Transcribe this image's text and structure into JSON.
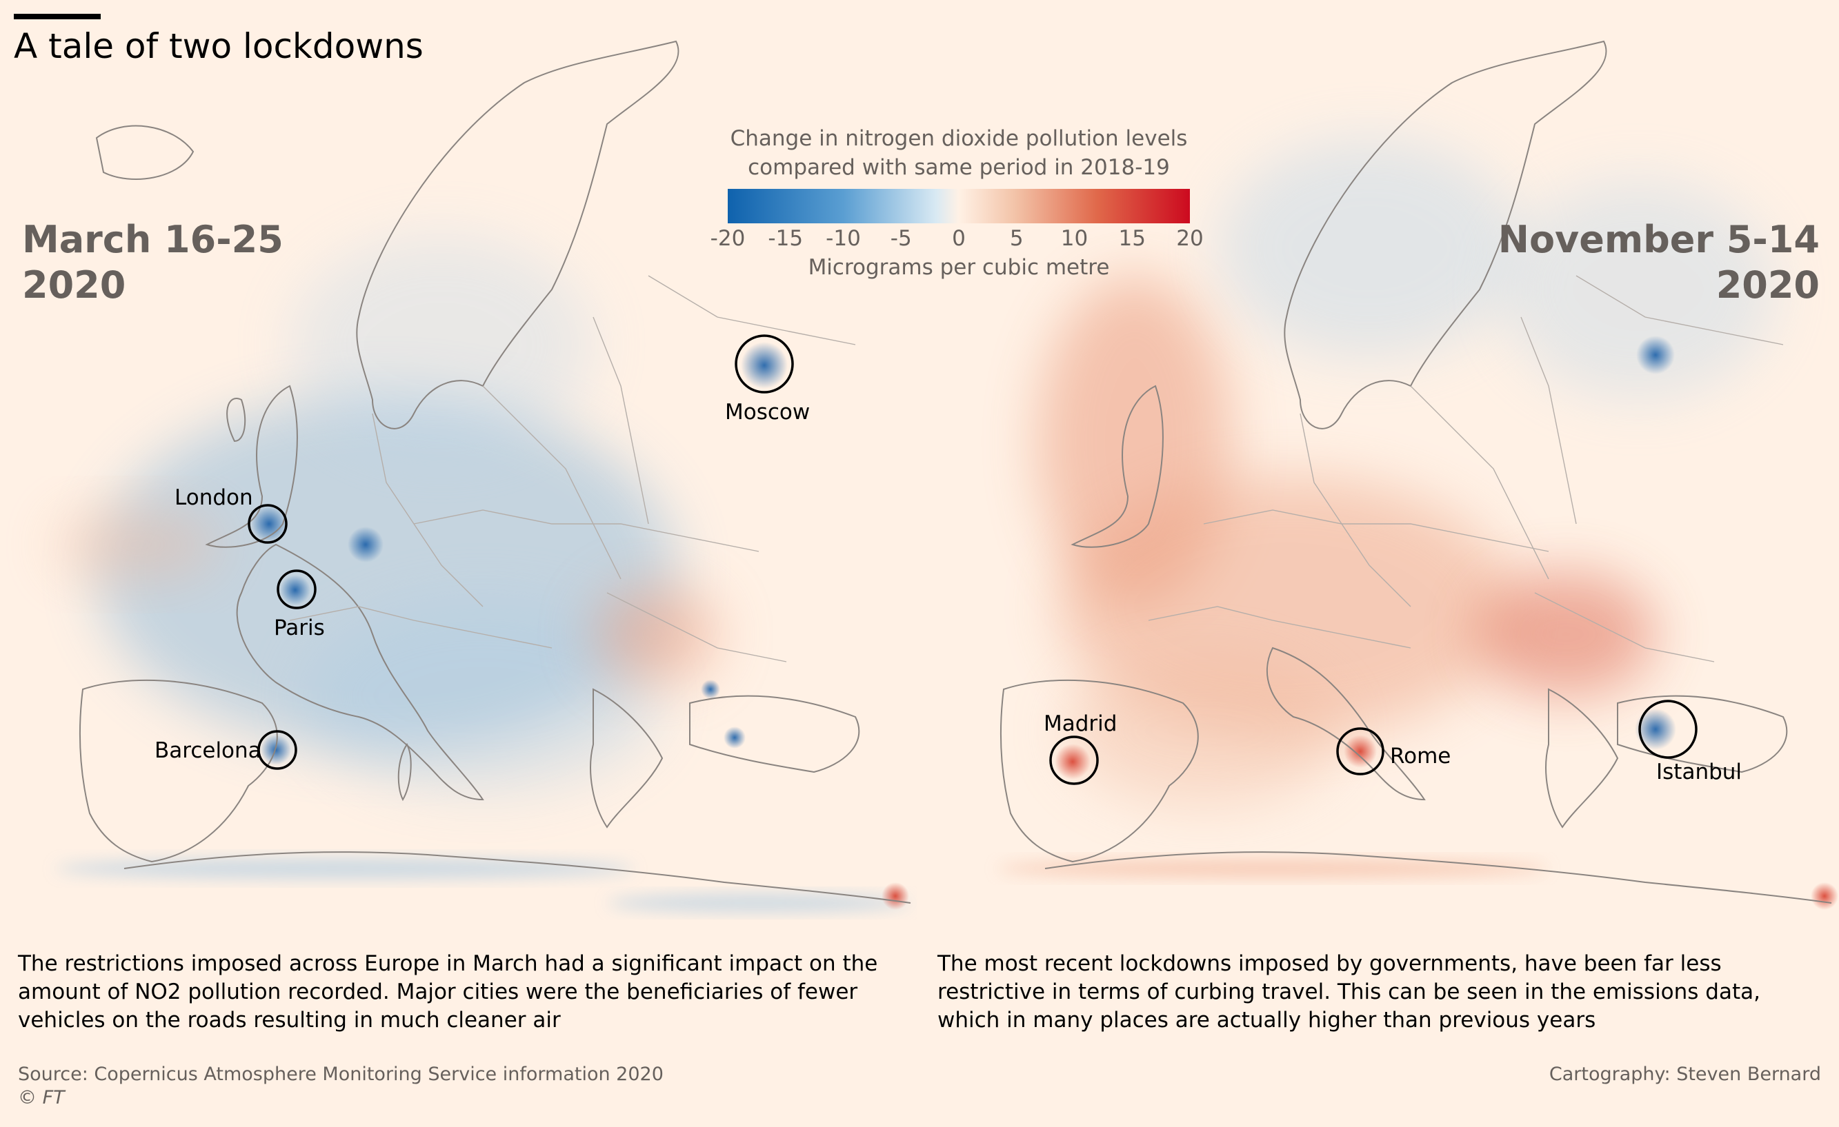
{
  "title": "A tale of two lockdowns",
  "legend": {
    "title_line1": "Change in nitrogen dioxide pollution levels",
    "title_line2": "compared with same period in 2018-19",
    "ticks": [
      "-20",
      "-15",
      "-10",
      "-5",
      "0",
      "5",
      "10",
      "15",
      "20"
    ],
    "units": "Micrograms per cubic metre",
    "color_low": "#0f62ad",
    "color_mid": "#fff1e5",
    "color_high": "#cc0a1f"
  },
  "maps": {
    "left": {
      "period_line1": "March 16-25",
      "period_line2": "2020",
      "cities": [
        "London",
        "Paris",
        "Barcelona",
        "Moscow"
      ],
      "caption": "The restrictions imposed across Europe in March had a significant impact on the amount of NO2 pollution recorded. Major cities were the beneficiaries of fewer vehicles on the roads resulting in much cleaner air"
    },
    "right": {
      "period_line1": "November 5-14",
      "period_line2": "2020",
      "cities": [
        "Madrid",
        "Rome",
        "Istanbul"
      ],
      "caption": "The most recent lockdowns imposed by governments, have been far less restrictive in terms of curbing travel. This can be seen in the emissions data, which in many places are actually higher than previous years"
    }
  },
  "footer": {
    "source": "Source: Copernicus Atmosphere Monitoring Service information 2020",
    "copyright": "© FT",
    "credit": "Cartography: Steven Bernard"
  }
}
